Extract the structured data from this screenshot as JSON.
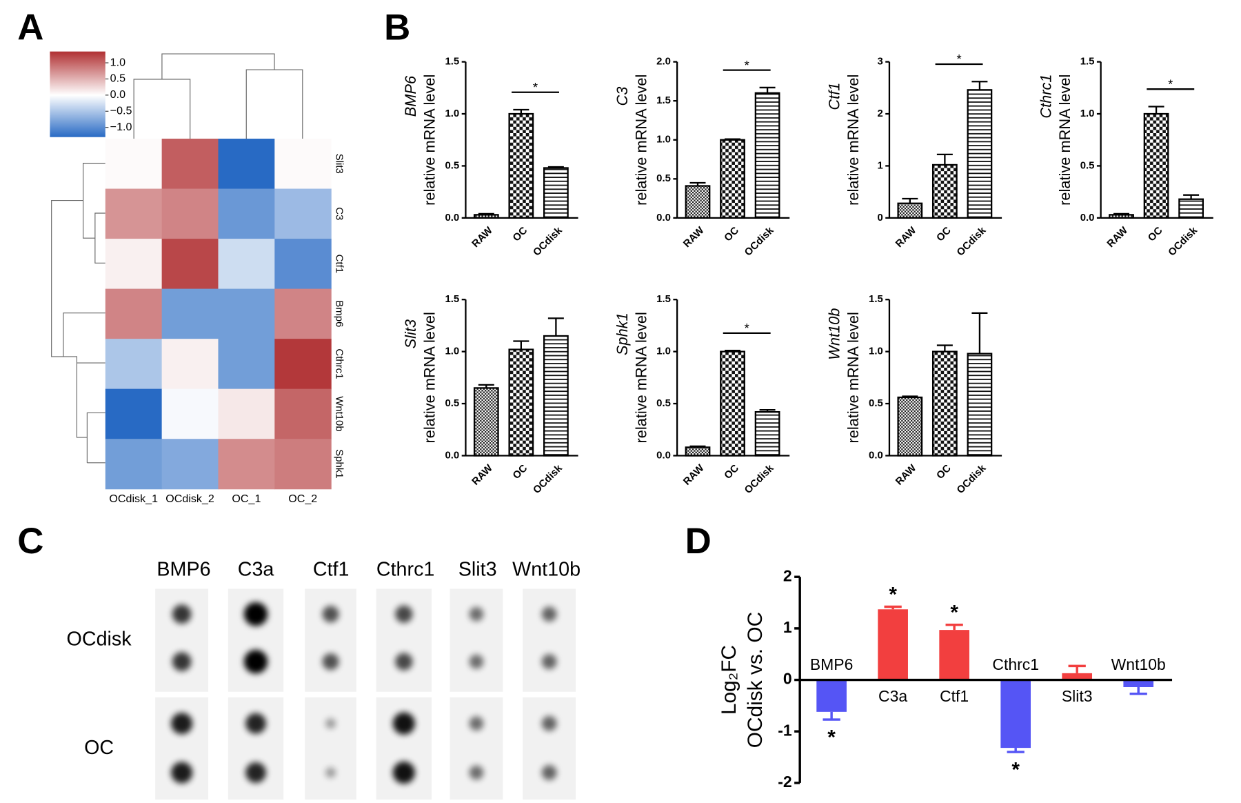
{
  "panels": [
    "A",
    "B",
    "C",
    "D"
  ],
  "blot": {
    "columns": [
      "BMP6",
      "C3a",
      "Ctf1",
      "Cthrc1",
      "Slit3",
      "Wnt10b"
    ],
    "rows": [
      "OCdisk",
      "OC"
    ],
    "intensity": [
      [
        0.7,
        1.0,
        0.55,
        0.6,
        0.4,
        0.45
      ],
      [
        0.85,
        0.8,
        0.15,
        0.9,
        0.4,
        0.45
      ]
    ]
  },
  "chart_data": [
    {
      "type": "heatmap",
      "rows": [
        "Slit3",
        "C3",
        "Ctf1",
        "Bmp6",
        "Cthrc1",
        "Wnt10b",
        "Sphk1"
      ],
      "columns": [
        "OCdisk_1",
        "OCdisk_2",
        "OC_1",
        "OC_2"
      ],
      "values": [
        [
          0.03,
          1.05,
          -1.3,
          0.03
        ],
        [
          0.7,
          0.8,
          -0.9,
          -0.6
        ],
        [
          0.1,
          1.2,
          -0.3,
          -1.0
        ],
        [
          0.8,
          -0.85,
          -0.85,
          0.8
        ],
        [
          -0.5,
          0.1,
          -0.85,
          1.3
        ],
        [
          -1.3,
          -0.05,
          0.15,
          1.0
        ],
        [
          -0.85,
          -0.75,
          0.75,
          0.85
        ]
      ],
      "clim": [
        -1.3,
        1.35
      ],
      "cbar_ticks": [
        {
          "value": 1,
          "label": "1.0"
        },
        {
          "value": 0.5,
          "label": "0.5"
        },
        {
          "value": 0,
          "label": "0.0"
        },
        {
          "value": -0.5,
          "label": "−0.5"
        },
        {
          "value": -1,
          "label": "−1.0"
        }
      ]
    },
    {
      "type": "bar",
      "gene": "BMP6",
      "ylabel": "relative mRNA level",
      "categories": [
        "RAW",
        "OC",
        "OCdisk"
      ],
      "values": [
        0.03,
        1.0,
        0.48
      ],
      "errors": [
        0.01,
        0.04,
        0.01
      ],
      "ylim": [
        0,
        1.5
      ],
      "yticks": [
        {
          "value": 0,
          "label": "0.0"
        },
        {
          "value": 0.5,
          "label": "0.5"
        },
        {
          "value": 1,
          "label": "1.0"
        },
        {
          "value": 1.5,
          "label": "1.5"
        }
      ],
      "significance": "*"
    },
    {
      "type": "bar",
      "gene": "C3",
      "ylabel": "relative mRNA level",
      "categories": [
        "RAW",
        "OC",
        "OCdisk"
      ],
      "values": [
        0.41,
        1.0,
        1.6
      ],
      "errors": [
        0.04,
        0.01,
        0.07
      ],
      "ylim": [
        0,
        2
      ],
      "yticks": [
        {
          "value": 0,
          "label": "0.0"
        },
        {
          "value": 0.5,
          "label": "0.5"
        },
        {
          "value": 1,
          "label": "1.0"
        },
        {
          "value": 1.5,
          "label": "1.5"
        },
        {
          "value": 2,
          "label": "2.0"
        }
      ],
      "significance": "*"
    },
    {
      "type": "bar",
      "gene": "Ctf1",
      "ylabel": "relative mRNA level",
      "categories": [
        "RAW",
        "OC",
        "OCdisk"
      ],
      "values": [
        0.28,
        1.02,
        2.46
      ],
      "errors": [
        0.09,
        0.2,
        0.16
      ],
      "ylim": [
        0,
        3
      ],
      "yticks": [
        0,
        1,
        2,
        3
      ],
      "significance": "*"
    },
    {
      "type": "bar",
      "gene": "Cthrc1",
      "ylabel": "relative mRNA level",
      "categories": [
        "RAW",
        "OC",
        "OCdisk"
      ],
      "values": [
        0.03,
        1.0,
        0.18
      ],
      "errors": [
        0.01,
        0.07,
        0.04
      ],
      "ylim": [
        0,
        1.5
      ],
      "yticks": [
        {
          "value": 0,
          "label": "0.0"
        },
        {
          "value": 0.5,
          "label": "0.5"
        },
        {
          "value": 1,
          "label": "1.0"
        },
        {
          "value": 1.5,
          "label": "1.5"
        }
      ],
      "significance": "*"
    },
    {
      "type": "bar",
      "gene": "Slit3",
      "ylabel": "relative mRNA level",
      "categories": [
        "RAW",
        "OC",
        "OCdisk"
      ],
      "values": [
        0.65,
        1.02,
        1.15
      ],
      "errors": [
        0.03,
        0.08,
        0.17
      ],
      "ylim": [
        0,
        1.5
      ],
      "yticks": [
        {
          "value": 0,
          "label": "0.0"
        },
        {
          "value": 0.5,
          "label": "0.5"
        },
        {
          "value": 1,
          "label": "1.0"
        },
        {
          "value": 1.5,
          "label": "1.5"
        }
      ]
    },
    {
      "type": "bar",
      "gene": "Sphk1",
      "ylabel": "relative mRNA level",
      "categories": [
        "RAW",
        "OC",
        "OCdisk"
      ],
      "values": [
        0.08,
        1.0,
        0.42
      ],
      "errors": [
        0.01,
        0.01,
        0.02
      ],
      "ylim": [
        0,
        1.5
      ],
      "yticks": [
        {
          "value": 0,
          "label": "0.0"
        },
        {
          "value": 0.5,
          "label": "0.5"
        },
        {
          "value": 1,
          "label": "1.0"
        },
        {
          "value": 1.5,
          "label": "1.5"
        }
      ],
      "significance": "*"
    },
    {
      "type": "bar",
      "gene": "Wnt10b",
      "ylabel": "relative mRNA level",
      "categories": [
        "RAW",
        "OC",
        "OCdisk"
      ],
      "values": [
        0.56,
        1.0,
        0.98
      ],
      "errors": [
        0.01,
        0.06,
        0.39
      ],
      "ylim": [
        0,
        1.5
      ],
      "yticks": [
        {
          "value": 0,
          "label": "0.0"
        },
        {
          "value": 0.5,
          "label": "0.5"
        },
        {
          "value": 1,
          "label": "1.0"
        },
        {
          "value": 1.5,
          "label": "1.5"
        }
      ]
    },
    {
      "type": "bar",
      "ylabel": [
        "Log₂FC",
        "OCdisk vs. OC"
      ],
      "categories": [
        "BMP6",
        "C3a",
        "Ctf1",
        "Cthrc1",
        "Slit3",
        "Wnt10b"
      ],
      "values": [
        -0.62,
        1.37,
        0.97,
        -1.32,
        0.13,
        -0.14
      ],
      "errors": [
        0.15,
        0.05,
        0.1,
        0.08,
        0.14,
        0.13
      ],
      "colors": [
        "#5555f5",
        "#f23f3f",
        "#f23f3f",
        "#5555f5",
        "#f23f3f",
        "#5555f5"
      ],
      "annotations": [
        "*",
        "*",
        "*",
        "*",
        null,
        null
      ],
      "ylim": [
        -2,
        2
      ],
      "yticks": [
        -2,
        -1,
        0,
        1,
        2
      ]
    }
  ]
}
